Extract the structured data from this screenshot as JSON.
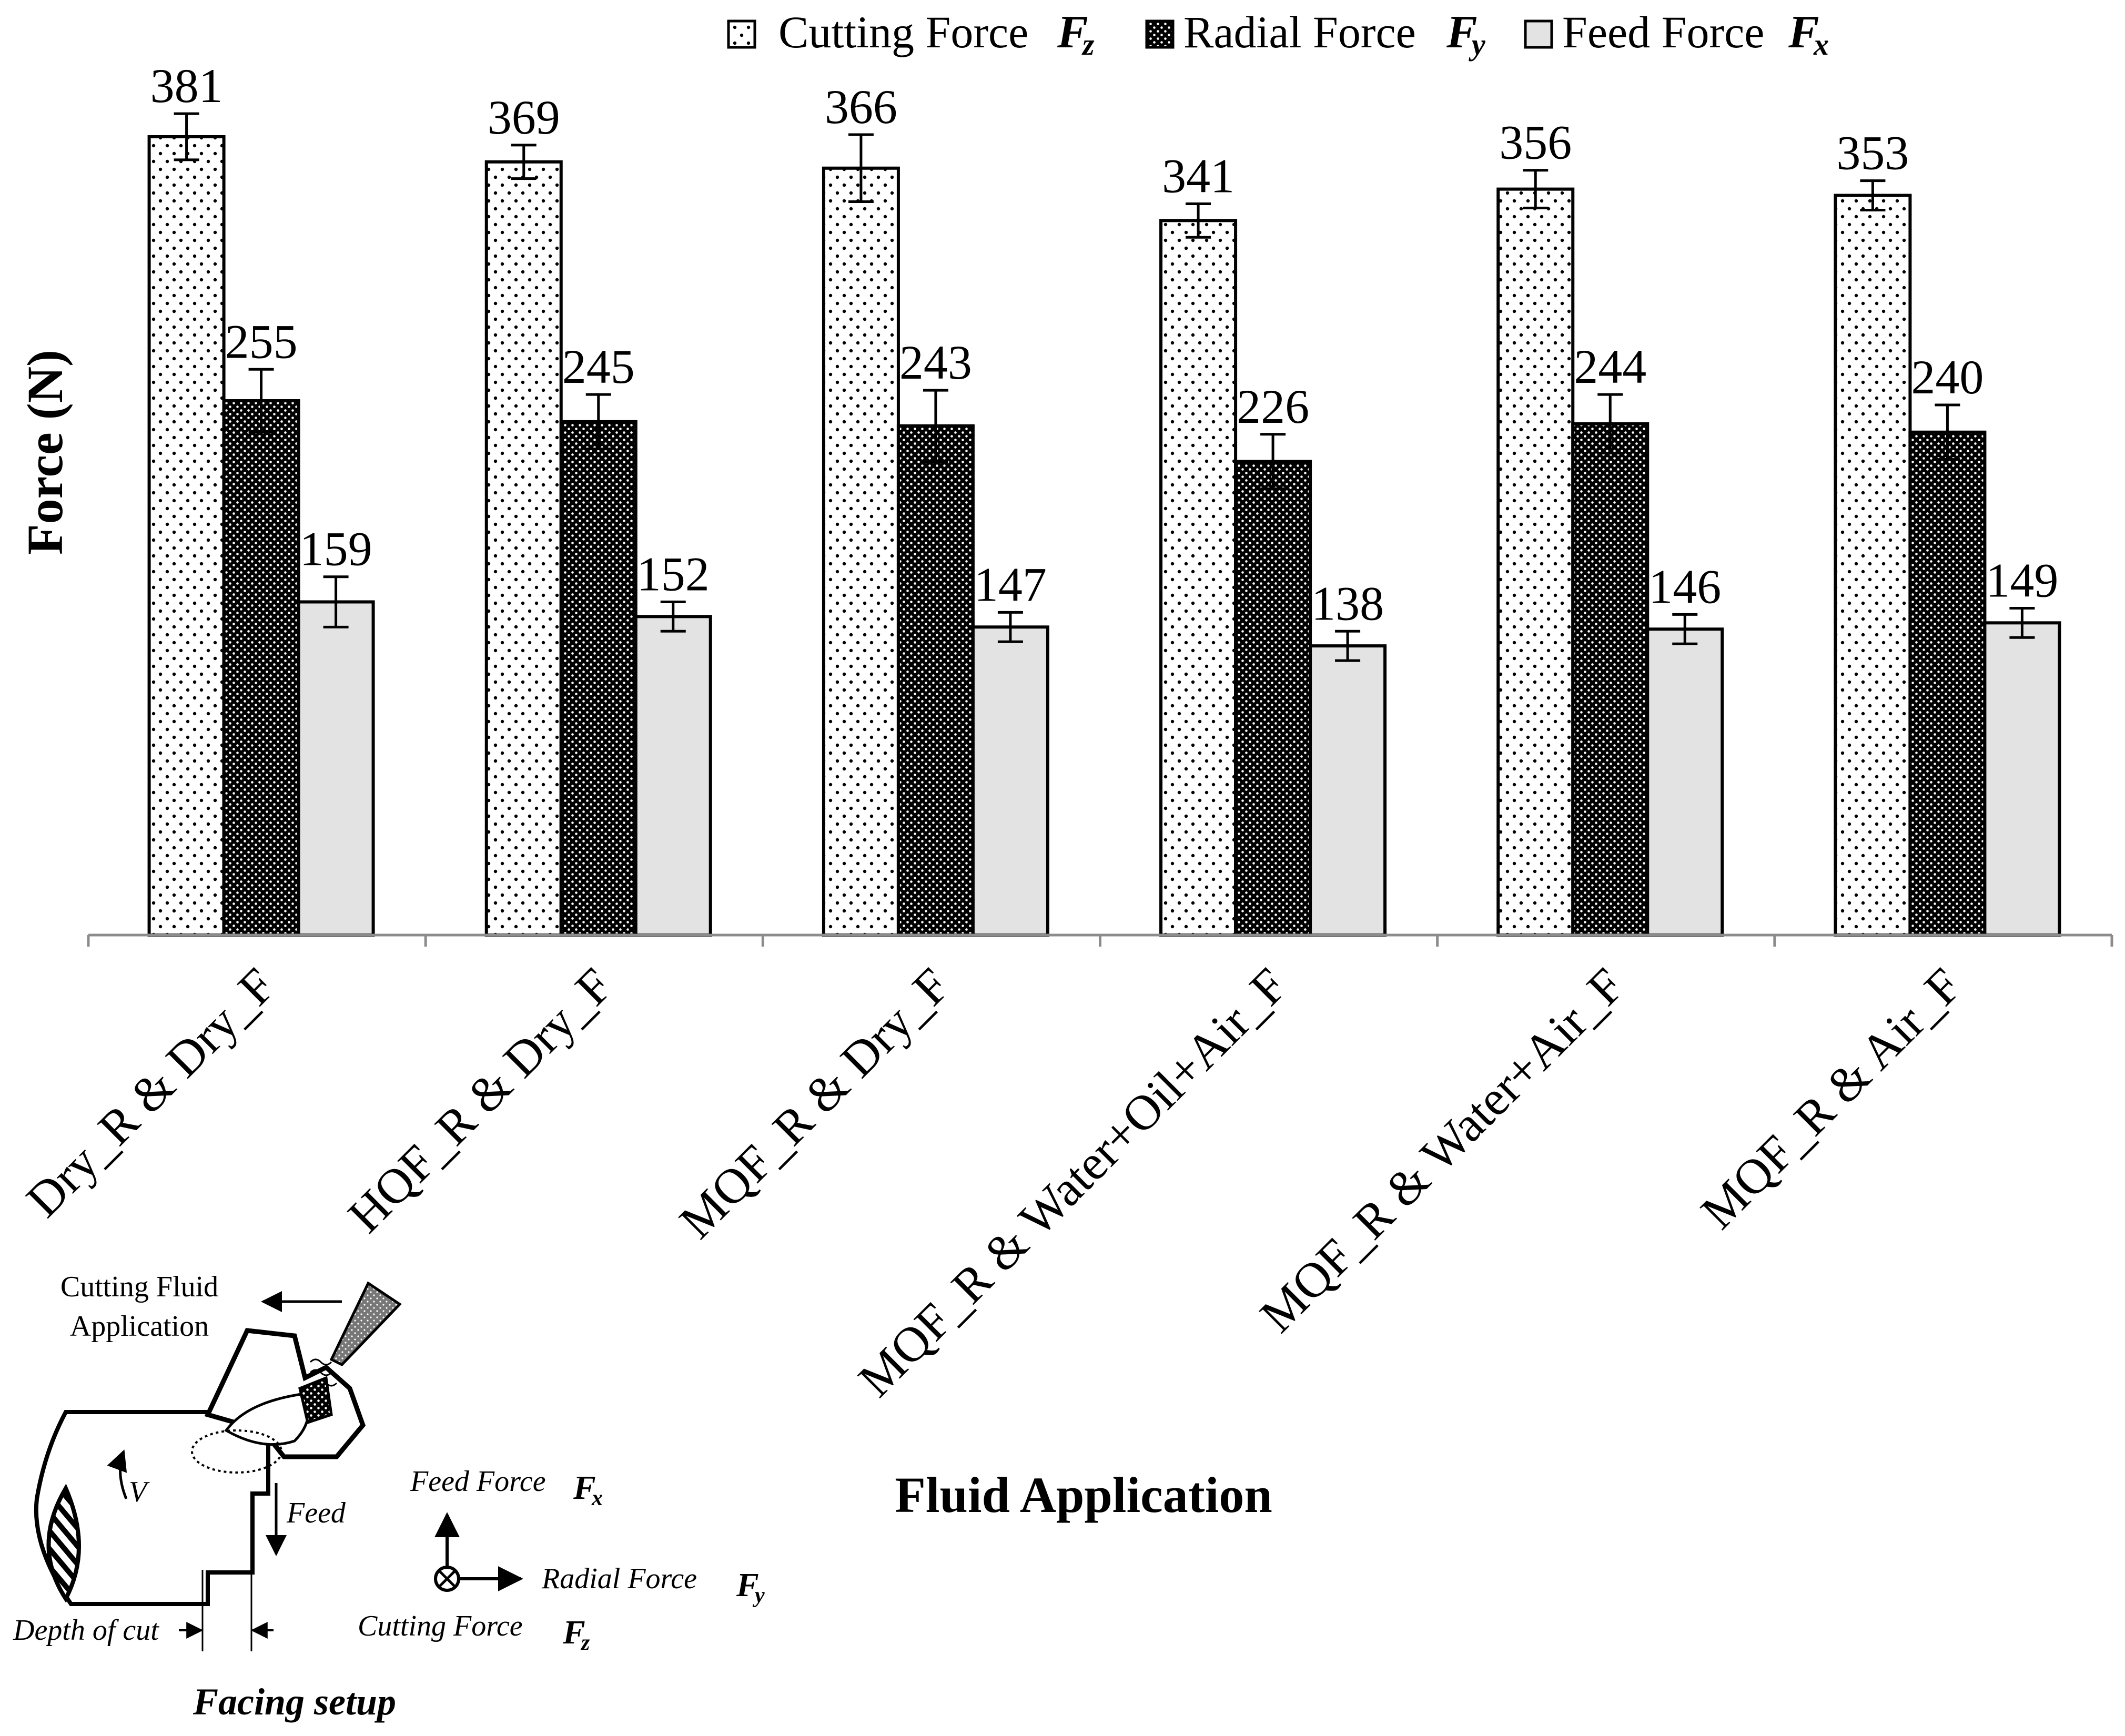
{
  "chart_data": {
    "type": "bar",
    "title": "",
    "xlabel": "Fluid Application",
    "ylabel": "Force (N)",
    "ylim": [
      0,
      400
    ],
    "categories": [
      "Dry_R & Dry_F",
      "HQF_R & Dry_F",
      "MQF_R & Dry_F",
      "MQF_R & Water+Oil+Air_F",
      "MQF_R & Water+Air_F",
      "MQF_R & Air_F"
    ],
    "series": [
      {
        "name": "Cutting Force",
        "symbol": "F",
        "sub": "z",
        "pattern": "sparse-dots",
        "values": [
          381,
          369,
          366,
          341,
          356,
          353
        ],
        "errors": [
          11,
          8,
          16,
          8,
          9,
          7
        ]
      },
      {
        "name": "Radial Force",
        "symbol": "F",
        "sub": "y",
        "pattern": "dense-dots",
        "values": [
          255,
          245,
          243,
          226,
          244,
          240
        ],
        "errors": [
          15,
          13,
          17,
          13,
          14,
          13
        ]
      },
      {
        "name": "Feed Force",
        "symbol": "F",
        "sub": "x",
        "pattern": "solid-grey",
        "values": [
          159,
          152,
          147,
          138,
          146,
          149
        ],
        "errors": [
          12,
          7,
          7,
          7,
          7,
          7
        ]
      }
    ],
    "legend_position": "top-right",
    "grid": false
  },
  "diagram": {
    "title": "Facing setup",
    "cutting_fluid_label_1": "Cutting Fluid",
    "cutting_fluid_label_2": "Application",
    "velocity_label": "V",
    "feed_label": "Feed",
    "depth_label": "Depth of cut",
    "feed_force_label": "Feed Force",
    "radial_force_label": "Radial Force",
    "cutting_force_label": "Cutting Force",
    "force_symbol": "F",
    "feed_sub": "x",
    "radial_sub": "y",
    "cutting_sub": "z"
  },
  "colors": {
    "bar_stroke": "#000000",
    "feed_fill": "#e3e3e3",
    "axis": "#8c8c8c"
  }
}
